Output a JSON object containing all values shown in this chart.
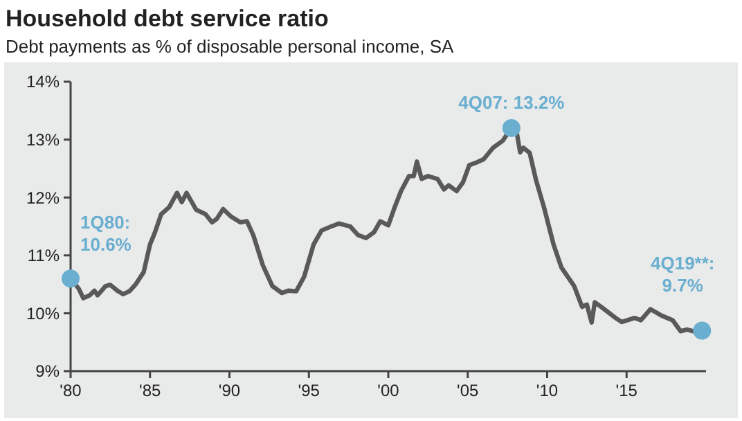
{
  "chart_data": {
    "type": "line",
    "title": "Household debt service ratio",
    "subtitle": "Debt payments as % of disposable personal income, SA",
    "x": [
      1980.0,
      1980.5,
      1980.8,
      1981.2,
      1981.5,
      1981.7,
      1982.2,
      1982.5,
      1983.0,
      1983.3,
      1983.7,
      1984.1,
      1984.6,
      1985.0,
      1985.3,
      1985.7,
      1986.2,
      1986.7,
      1987.0,
      1987.3,
      1987.9,
      1988.5,
      1988.9,
      1989.2,
      1989.6,
      1990.1,
      1990.7,
      1991.1,
      1991.5,
      1992.1,
      1992.7,
      1993.3,
      1993.7,
      1994.2,
      1994.7,
      1995.3,
      1995.8,
      1996.5,
      1996.9,
      1997.6,
      1998.1,
      1998.6,
      1999.1,
      1999.5,
      2000.0,
      2000.4,
      2000.8,
      2001.3,
      2001.6,
      2001.8,
      2002.1,
      2002.5,
      2003.1,
      2003.5,
      2003.8,
      2004.3,
      2004.7,
      2005.1,
      2005.6,
      2006.0,
      2006.6,
      2007.2,
      2007.75,
      2008.1,
      2008.3,
      2008.5,
      2008.9,
      2009.3,
      2009.8,
      2010.4,
      2010.9,
      2011.7,
      2012.2,
      2012.5,
      2012.8,
      2013.0,
      2013.5,
      2014.3,
      2014.7,
      2015.5,
      2015.9,
      2016.5,
      2017.2,
      2017.9,
      2018.4,
      2018.8,
      2019.2,
      2019.75
    ],
    "series": [
      {
        "color": "#595959",
        "values": [
          10.6,
          10.43,
          10.26,
          10.31,
          10.39,
          10.31,
          10.47,
          10.49,
          10.38,
          10.33,
          10.38,
          10.5,
          10.71,
          11.19,
          11.39,
          11.71,
          11.83,
          12.08,
          11.92,
          12.08,
          11.79,
          11.71,
          11.57,
          11.63,
          11.8,
          11.67,
          11.57,
          11.59,
          11.35,
          10.83,
          10.47,
          10.35,
          10.39,
          10.38,
          10.63,
          11.19,
          11.43,
          11.51,
          11.55,
          11.5,
          11.35,
          11.3,
          11.4,
          11.59,
          11.52,
          11.83,
          12.11,
          12.37,
          12.37,
          12.62,
          12.32,
          12.37,
          12.32,
          12.14,
          12.21,
          12.11,
          12.26,
          12.56,
          12.61,
          12.66,
          12.86,
          12.98,
          13.2,
          13.1,
          12.78,
          12.86,
          12.77,
          12.3,
          11.83,
          11.19,
          10.79,
          10.47,
          10.11,
          10.15,
          9.84,
          10.19,
          10.09,
          9.92,
          9.85,
          9.92,
          9.88,
          10.07,
          9.96,
          9.88,
          9.69,
          9.72,
          9.69,
          9.7
        ]
      }
    ],
    "xlim": [
      1980,
      2020
    ],
    "xticks": [
      {
        "value": 1980,
        "label": "'80"
      },
      {
        "value": 1985,
        "label": "'85"
      },
      {
        "value": 1990,
        "label": "'90"
      },
      {
        "value": 1995,
        "label": "'95"
      },
      {
        "value": 2000,
        "label": "'00"
      },
      {
        "value": 2005,
        "label": "'05"
      },
      {
        "value": 2010,
        "label": "'10"
      },
      {
        "value": 2015,
        "label": "'15"
      }
    ],
    "ylim": [
      9,
      14
    ],
    "yticks": [
      {
        "value": 9,
        "label": "9%"
      },
      {
        "value": 10,
        "label": "10%"
      },
      {
        "value": 11,
        "label": "11%"
      },
      {
        "value": 12,
        "label": "12%"
      },
      {
        "value": 13,
        "label": "13%"
      },
      {
        "value": 14,
        "label": "14%"
      }
    ],
    "annotations": [
      {
        "text": "1Q80: 10.6%",
        "x": 1980.0,
        "y": 10.6
      },
      {
        "text": "4Q07: 13.2%",
        "x": 2007.75,
        "y": 13.2
      },
      {
        "text": "4Q19**: 9.7%",
        "x": 2019.75,
        "y": 9.7
      }
    ],
    "grid": false,
    "line_style": "solid"
  }
}
